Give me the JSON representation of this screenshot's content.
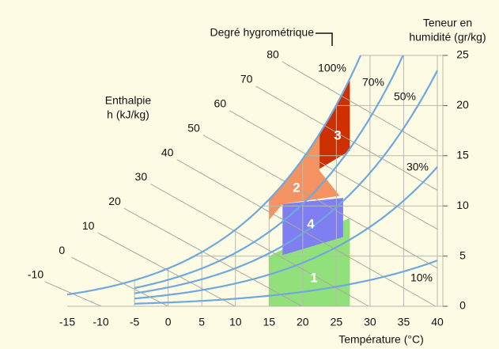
{
  "chart_data": {
    "type": "psychrometric",
    "x_label": "Température (°C)",
    "y2_label": [
      "Teneur en",
      "humidité (gr/kg)"
    ],
    "enthalpy_label": [
      "Enthalpie",
      "h (kJ/kg)"
    ],
    "rh_label": "Degré hygrométrique",
    "xlim": [
      -15,
      40
    ],
    "xticks": [
      -15,
      -10,
      -5,
      0,
      5,
      10,
      15,
      20,
      25,
      30,
      35,
      40
    ],
    "y2lim": [
      0,
      25
    ],
    "y2ticks": [
      0,
      5,
      10,
      15,
      20,
      25
    ],
    "enthalpy_ticks": [
      -10,
      0,
      10,
      20,
      30,
      40,
      50,
      60,
      70,
      80
    ],
    "rh_curves": {
      "values": [
        10,
        30,
        50,
        70,
        100
      ],
      "value_labels": [
        "10%",
        "30%",
        "50%",
        "70%",
        "100%"
      ]
    },
    "zones": [
      "1",
      "2",
      "3",
      "4"
    ],
    "color": "#6fa8dc"
  }
}
